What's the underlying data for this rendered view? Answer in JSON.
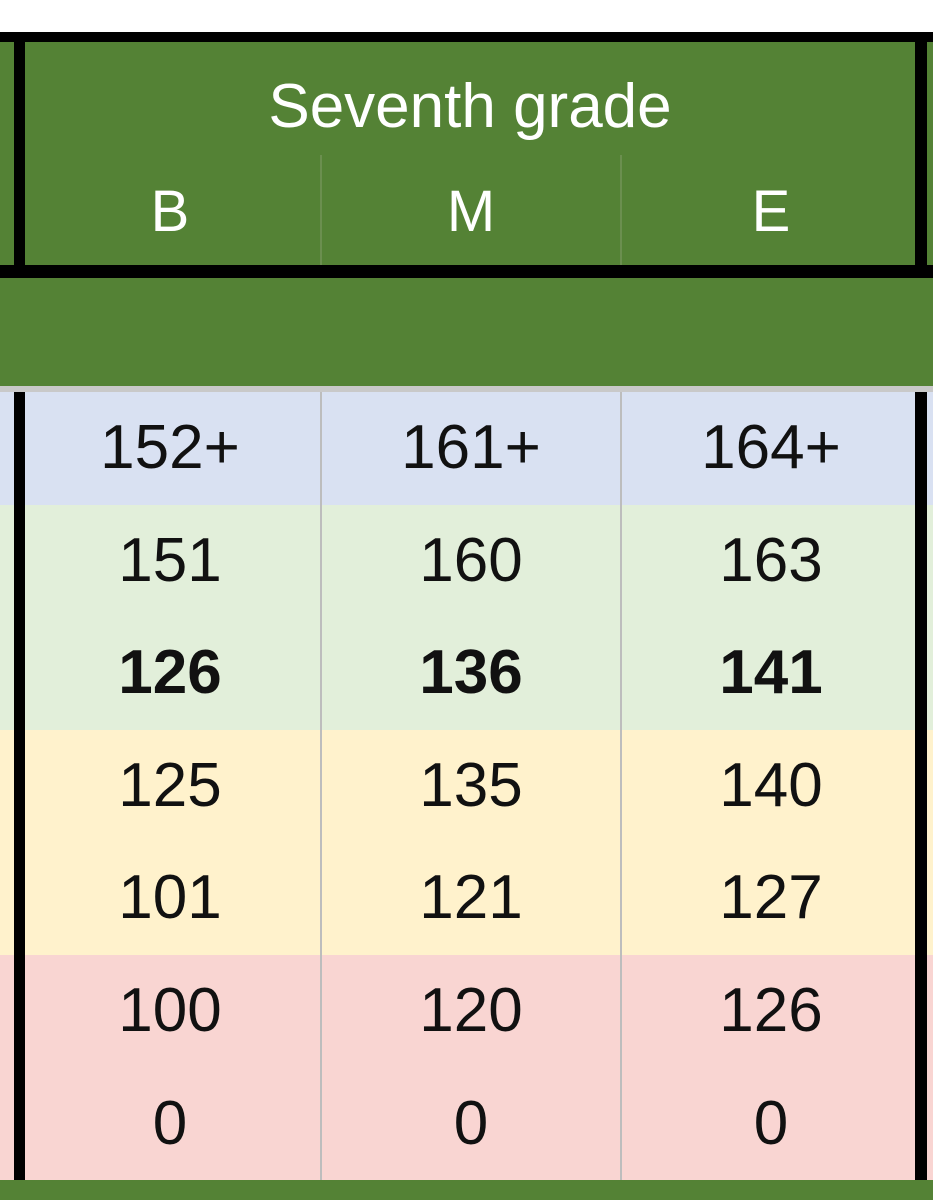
{
  "header": {
    "title": "Seventh grade",
    "columns": [
      "B",
      "M",
      "E"
    ]
  },
  "colors": {
    "header_green": "#548235",
    "blue_band": "#D9E1F2",
    "green_band": "#E2EFDA",
    "yellow_band": "#FFF2CC",
    "red_band": "#F9D5D2"
  },
  "rows": [
    {
      "band": "blue",
      "bold": false,
      "values": [
        "152+",
        "161+",
        "164+"
      ]
    },
    {
      "band": "green",
      "bold": false,
      "values": [
        "151",
        "160",
        "163"
      ]
    },
    {
      "band": "green",
      "bold": true,
      "values": [
        "126",
        "136",
        "141"
      ]
    },
    {
      "band": "yellow",
      "bold": false,
      "values": [
        "125",
        "135",
        "140"
      ]
    },
    {
      "band": "yellow",
      "bold": false,
      "values": [
        "101",
        "121",
        "127"
      ]
    },
    {
      "band": "red",
      "bold": false,
      "values": [
        "100",
        "120",
        "126"
      ]
    },
    {
      "band": "red",
      "bold": false,
      "values": [
        "0",
        "0",
        "0"
      ]
    }
  ]
}
